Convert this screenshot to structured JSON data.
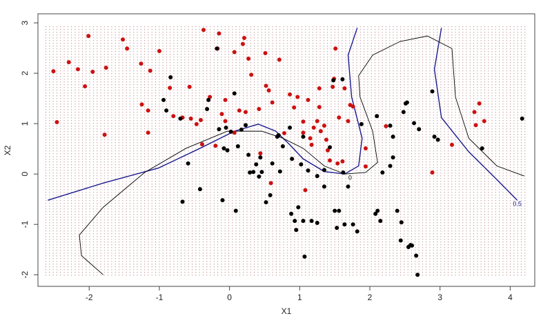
{
  "chart_data": {
    "type": "scatter",
    "xlabel": "X1",
    "ylabel": "X2",
    "xlim": [
      -2.73,
      4.35
    ],
    "ylim": [
      -2.23,
      3.18
    ],
    "xticks": [
      -2,
      -1,
      0,
      1,
      2,
      3,
      4
    ],
    "yticks": [
      -2,
      -1,
      0,
      1,
      2,
      3
    ],
    "series": [
      {
        "color": "#cc1111",
        "x": [
          -2.51,
          -2.46,
          -2.29,
          -2.16,
          -2.06,
          -2.01,
          -1.95,
          -1.78,
          -1.76,
          -1.52,
          -1.46,
          -1.26,
          -1.25,
          -1.16,
          -1.16,
          -1.13,
          -1.0,
          -0.85,
          -0.8,
          -0.67,
          -0.57,
          -0.55,
          -0.47,
          -0.41,
          -0.37,
          -0.39,
          -0.28,
          -0.2,
          -0.17,
          -0.15,
          -0.11,
          -0.06,
          -0.06,
          0.07,
          0.07,
          0.14,
          0.19,
          0.21,
          0.23,
          0.27,
          0.31,
          0.42,
          0.44,
          0.51,
          0.52,
          0.56,
          0.59,
          0.61,
          0.71,
          0.78,
          0.86,
          0.92,
          0.97,
          1.05,
          1.05,
          1.08,
          1.12,
          1.15,
          1.17,
          1.2,
          1.25,
          1.28,
          1.28,
          1.3,
          1.35,
          1.38,
          1.4,
          1.43,
          1.47,
          1.49,
          1.51,
          1.54,
          1.56,
          1.61,
          1.64,
          1.69,
          1.72,
          1.76,
          1.94,
          1.94,
          2.23,
          2.89,
          3.17,
          3.49,
          3.51,
          3.56,
          3.63
        ],
        "y": [
          2.04,
          1.03,
          2.22,
          2.08,
          1.74,
          2.74,
          2.03,
          0.78,
          2.11,
          2.67,
          2.49,
          2.19,
          1.38,
          1.26,
          0.82,
          2.05,
          2.44,
          1.71,
          1.15,
          1.12,
          1.73,
          1.1,
          0.99,
          1.07,
          2.86,
          0.59,
          1.53,
          0.56,
          2.49,
          2.79,
          1.19,
          1.47,
          1.05,
          2.42,
          0.82,
          1.26,
          2.58,
          2.7,
          1.23,
          2.29,
          1.97,
          1.29,
          0.41,
          2.4,
          1.75,
          1.66,
          -0.18,
          1.42,
          2.27,
          0.81,
          1.58,
          1.32,
          1.53,
          1.04,
          0.82,
          -0.32,
          1.47,
          0.71,
          0.58,
          0.92,
          1.05,
          1.7,
          1.33,
          0.85,
          0.96,
          0.68,
          0.47,
          0.27,
          1.73,
          1.89,
          2.49,
          0.21,
          1.12,
          0.25,
          1.7,
          1.05,
          1.37,
          1.34,
          0.51,
          0.15,
          0.95,
          0.03,
          0.58,
          1.23,
          0.97,
          1.4,
          1.05
        ]
      },
      {
        "color": "#000000",
        "x": [
          -0.94,
          -0.9,
          -0.84,
          -0.7,
          -0.59,
          -0.67,
          -0.42,
          -0.32,
          -0.3,
          -0.18,
          -0.15,
          -0.1,
          -0.08,
          -0.05,
          -0.03,
          0.02,
          0.07,
          0.09,
          0.12,
          0.17,
          0.23,
          0.27,
          0.29,
          0.34,
          0.38,
          0.42,
          0.44,
          0.46,
          0.52,
          0.58,
          0.61,
          0.68,
          0.7,
          0.72,
          0.76,
          0.86,
          0.88,
          0.89,
          0.93,
          0.95,
          0.98,
          1.02,
          1.05,
          1.05,
          1.07,
          1.12,
          1.17,
          1.25,
          1.25,
          1.35,
          1.35,
          1.43,
          1.48,
          1.5,
          1.53,
          1.56,
          1.61,
          1.62,
          1.64,
          1.69,
          1.76,
          1.82,
          1.88,
          2.08,
          2.1,
          2.11,
          2.15,
          2.18,
          2.29,
          2.29,
          2.33,
          2.33,
          2.39,
          2.45,
          2.44,
          2.48,
          2.51,
          2.53,
          2.55,
          2.58,
          2.6,
          2.63,
          2.66,
          2.68,
          2.7,
          2.89,
          2.92,
          2.97,
          3.6,
          4.17
        ],
        "y": [
          1.47,
          1.26,
          1.92,
          1.1,
          0.21,
          -0.55,
          -0.3,
          1.29,
          1.47,
          2.49,
          0.89,
          -0.52,
          0.51,
          0.92,
          0.47,
          0.84,
          1.6,
          -0.73,
          0.55,
          0.88,
          0.97,
          0.38,
          0.03,
          0.04,
          0.19,
          -0.05,
          0.33,
          0.04,
          -0.56,
          -0.42,
          0.21,
          0.74,
          0.77,
          0.05,
          0.55,
          0.92,
          -0.79,
          0.3,
          -0.93,
          -1.11,
          -0.66,
          0.19,
          -0.93,
          0.74,
          -1.64,
          0.07,
          -0.93,
          -0.97,
          -0.04,
          0.08,
          -0.25,
          0.53,
          1.86,
          -0.73,
          -1.07,
          -0.73,
          1.88,
          0.03,
          -1.0,
          -0.25,
          -1.0,
          -1.14,
          0.99,
          -0.79,
          1.15,
          -0.73,
          -0.93,
          0.03,
          0.96,
          0.16,
          0.33,
          0.74,
          -0.73,
          -0.96,
          -1.32,
          1.23,
          1.4,
          1.42,
          -1.45,
          -1.41,
          -1.42,
          1.01,
          -1.62,
          -2.0,
          0.89,
          1.64,
          0.74,
          0.68,
          0.51,
          1.1
        ]
      }
    ],
    "lines": [
      {
        "label": "0.5",
        "color": "#1a1a8c",
        "x": [
          -2.59,
          -1.8,
          -1.01,
          -0.42,
          0.07,
          0.41,
          0.66,
          0.86,
          1.05,
          1.35,
          1.64,
          1.84,
          1.89,
          1.74,
          1.69,
          1.82,
          null,
          3.02,
          2.92,
          3.02,
          3.41,
          3.81,
          4.1
        ],
        "y": [
          -0.52,
          -0.18,
          0.12,
          0.51,
          0.85,
          0.99,
          0.85,
          0.58,
          0.3,
          0.05,
          0.0,
          0.16,
          0.71,
          1.53,
          2.36,
          2.9,
          null,
          2.9,
          2.08,
          1.12,
          0.44,
          -0.11,
          -0.52
        ]
      },
      {
        "label": "0",
        "color": "#000000",
        "x": [
          -1.8,
          -2.11,
          -2.14,
          -1.8,
          -1.21,
          -0.62,
          -0.03,
          0.46,
          0.76,
          1.05,
          1.35,
          1.64,
          1.94,
          2.11,
          2.04,
          1.86,
          1.84,
          2.04,
          2.43,
          2.82,
          3.17,
          3.22,
          3.41,
          3.81,
          4.2
        ],
        "y": [
          -2.0,
          -1.62,
          -1.21,
          -0.66,
          0.03,
          0.51,
          0.85,
          0.85,
          0.71,
          0.51,
          0.16,
          0.0,
          0.03,
          0.23,
          0.85,
          1.53,
          1.95,
          2.36,
          2.63,
          2.74,
          2.49,
          1.53,
          0.71,
          0.16,
          -0.04
        ]
      }
    ]
  }
}
